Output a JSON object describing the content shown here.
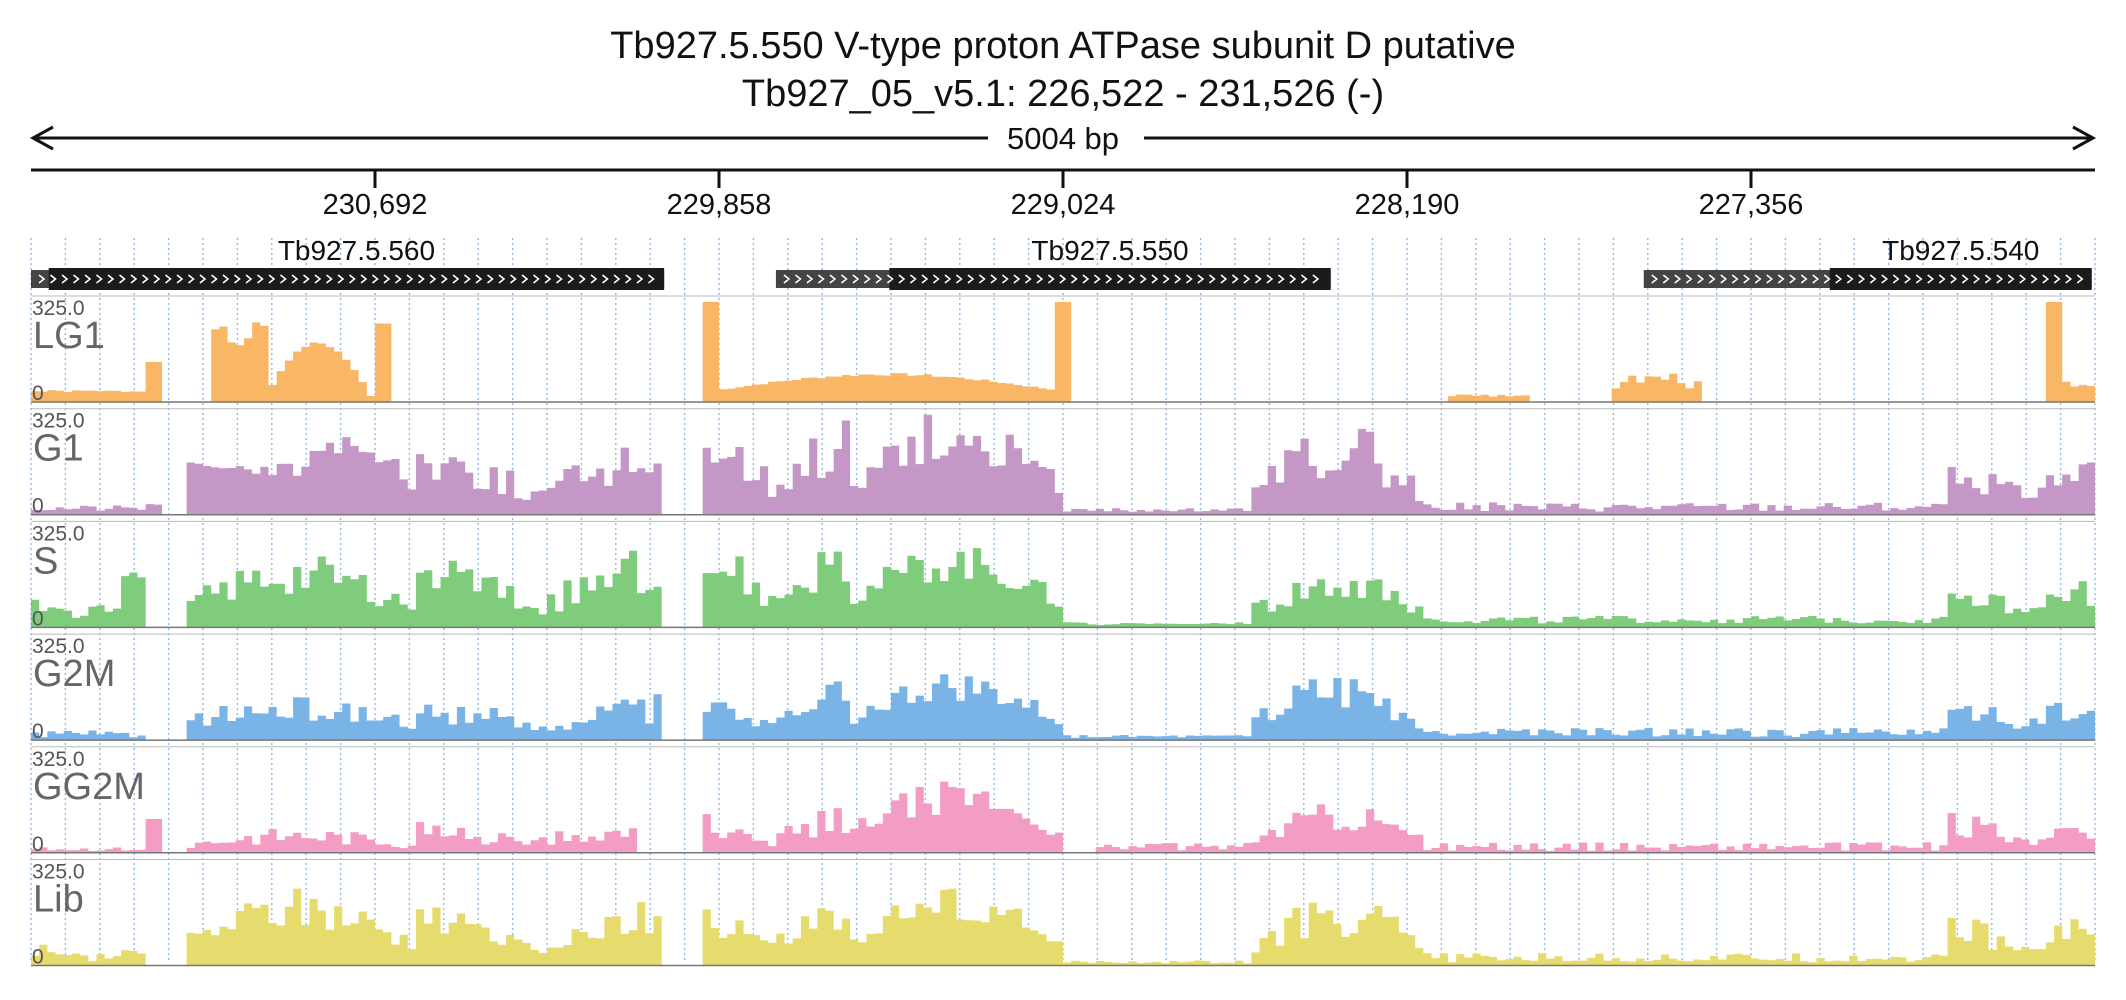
{
  "title": {
    "line1": "Tb927.5.550  V-type proton ATPase subunit D  putative",
    "line2": "Tb927_05_v5.1: 226,522 - 231,526 (-)"
  },
  "span_label": "5004 bp",
  "colors": {
    "axis": "#111111",
    "gridline": "#8fb8e3",
    "gene_cds": "#1b1b1b",
    "gene_utr": "#444444",
    "track_border": "#bbbbbb",
    "track_baseline": "#777777"
  },
  "chart_data": {
    "type": "area",
    "region": {
      "chrom": "Tb927_05_v5.1",
      "start": 226522,
      "end": 231526,
      "strand": "-"
    },
    "x_reversed": true,
    "x_ticks": [
      {
        "pos": 230692,
        "label": "230,692"
      },
      {
        "pos": 229858,
        "label": "229,858"
      },
      {
        "pos": 229024,
        "label": "229,024"
      },
      {
        "pos": 228190,
        "label": "228,190"
      },
      {
        "pos": 227356,
        "label": "227,356"
      }
    ],
    "genes": [
      {
        "name": "Tb927.5.560",
        "utr": [
          229991,
          231526
        ],
        "cds": [
          229991,
          231483
        ]
      },
      {
        "name": "Tb927.5.550",
        "utr": [
          228375,
          229720
        ],
        "cds": [
          228375,
          229445
        ]
      },
      {
        "name": "Tb927.5.540",
        "utr": [
          226530,
          227616
        ],
        "cds": [
          226530,
          227165
        ]
      }
    ],
    "ylim": [
      0,
      325
    ],
    "ytick_labels": {
      "max": "325.0",
      "min": "0"
    },
    "num_bins": 252,
    "tracks": [
      {
        "name": "LG1",
        "color": "#f9b665",
        "segments": [
          {
            "from": 231526,
            "to": 231250,
            "base": 35,
            "amp": 0,
            "shape": "flat",
            "noise": 0.1,
            "seed": 1
          },
          {
            "from": 231250,
            "to": 231200,
            "base": 130,
            "amp": 0,
            "shape": "flat",
            "noise": 0.0,
            "seed": 2
          },
          {
            "from": 231090,
            "to": 230960,
            "base": 170,
            "amp": 80,
            "shape": "valley",
            "noise": 0.08,
            "seed": 3
          },
          {
            "from": 230960,
            "to": 230700,
            "base": 15,
            "amp": 180,
            "shape": "dome",
            "noise": 0.05,
            "seed": 4
          },
          {
            "from": 230700,
            "to": 230650,
            "base": 255,
            "amp": 0,
            "shape": "flat",
            "noise": 0.0,
            "seed": 5
          },
          {
            "from": 229900,
            "to": 229855,
            "base": 325,
            "amp": 0,
            "shape": "flat",
            "noise": 0.0,
            "seed": 6
          },
          {
            "from": 229855,
            "to": 229048,
            "base": 40,
            "amp": 50,
            "shape": "dome",
            "noise": 0.05,
            "seed": 7
          },
          {
            "from": 229048,
            "to": 229000,
            "base": 325,
            "amp": 0,
            "shape": "flat",
            "noise": 0.0,
            "seed": 8
          },
          {
            "from": 228090,
            "to": 227900,
            "base": 22,
            "amp": 0,
            "shape": "flat",
            "noise": 0.25,
            "seed": 9
          },
          {
            "from": 227700,
            "to": 227480,
            "base": 55,
            "amp": 20,
            "shape": "dome",
            "noise": 0.3,
            "seed": 10
          },
          {
            "from": 226650,
            "to": 226600,
            "base": 325,
            "amp": 0,
            "shape": "flat",
            "noise": 0.0,
            "seed": 11
          },
          {
            "from": 226600,
            "to": 226522,
            "base": 60,
            "amp": 0,
            "shape": "flat",
            "noise": 0.2,
            "seed": 12
          }
        ]
      },
      {
        "name": "G1",
        "color": "#c497c6",
        "segments": [
          {
            "from": 231526,
            "to": 231250,
            "base": 20,
            "amp": 0,
            "shape": "flat",
            "noise": 0.5,
            "seed": 21
          },
          {
            "from": 231250,
            "to": 231200,
            "base": 45,
            "amp": 0,
            "shape": "flat",
            "noise": 0.3,
            "seed": 22
          },
          {
            "from": 231150,
            "to": 230900,
            "base": 150,
            "amp": 0,
            "shape": "valley",
            "noise": 0.15,
            "seed": 23
          },
          {
            "from": 230900,
            "to": 230600,
            "base": 80,
            "amp": 170,
            "shape": "dome",
            "noise": 0.2,
            "seed": 24
          },
          {
            "from": 230600,
            "to": 230000,
            "base": 60,
            "amp": 120,
            "shape": "valley",
            "noise": 0.45,
            "seed": 25
          },
          {
            "from": 229900,
            "to": 229550,
            "base": 90,
            "amp": 140,
            "shape": "valley",
            "noise": 0.45,
            "seed": 26
          },
          {
            "from": 229550,
            "to": 229030,
            "base": 90,
            "amp": 170,
            "shape": "dome",
            "noise": 0.35,
            "seed": 27
          },
          {
            "from": 229030,
            "to": 228560,
            "base": 15,
            "amp": 0,
            "shape": "flat",
            "noise": 0.4,
            "seed": 28
          },
          {
            "from": 228560,
            "to": 228150,
            "base": 60,
            "amp": 160,
            "shape": "dome",
            "noise": 0.45,
            "seed": 29
          },
          {
            "from": 228150,
            "to": 226880,
            "base": 25,
            "amp": 0,
            "shape": "flat",
            "noise": 0.6,
            "seed": 30
          },
          {
            "from": 226880,
            "to": 226522,
            "base": 60,
            "amp": 80,
            "shape": "valley",
            "noise": 0.45,
            "seed": 31
          }
        ]
      },
      {
        "name": "S",
        "color": "#7fcd7c",
        "segments": [
          {
            "from": 231526,
            "to": 231300,
            "base": 40,
            "amp": 30,
            "shape": "valley",
            "noise": 0.3,
            "seed": 41
          },
          {
            "from": 231300,
            "to": 231250,
            "base": 140,
            "amp": 0,
            "shape": "flat",
            "noise": 0.3,
            "seed": 42
          },
          {
            "from": 231150,
            "to": 230600,
            "base": 70,
            "amp": 100,
            "shape": "dome",
            "noise": 0.4,
            "seed": 43
          },
          {
            "from": 230600,
            "to": 230000,
            "base": 60,
            "amp": 120,
            "shape": "valley",
            "noise": 0.45,
            "seed": 44
          },
          {
            "from": 229900,
            "to": 229550,
            "base": 80,
            "amp": 130,
            "shape": "valley",
            "noise": 0.45,
            "seed": 45
          },
          {
            "from": 229550,
            "to": 229030,
            "base": 80,
            "amp": 130,
            "shape": "dome",
            "noise": 0.3,
            "seed": 46
          },
          {
            "from": 229030,
            "to": 228560,
            "base": 12,
            "amp": 0,
            "shape": "flat",
            "noise": 0.4,
            "seed": 47
          },
          {
            "from": 228560,
            "to": 228150,
            "base": 60,
            "amp": 80,
            "shape": "dome",
            "noise": 0.45,
            "seed": 48
          },
          {
            "from": 228150,
            "to": 226880,
            "base": 25,
            "amp": 0,
            "shape": "flat",
            "noise": 0.5,
            "seed": 49
          },
          {
            "from": 226880,
            "to": 226522,
            "base": 50,
            "amp": 60,
            "shape": "valley",
            "noise": 0.4,
            "seed": 50
          }
        ]
      },
      {
        "name": "G2M",
        "color": "#7ab4e6",
        "segments": [
          {
            "from": 231526,
            "to": 231250,
            "base": 20,
            "amp": 0,
            "shape": "flat",
            "noise": 0.6,
            "seed": 61
          },
          {
            "from": 231150,
            "to": 230600,
            "base": 60,
            "amp": 40,
            "shape": "dome",
            "noise": 0.4,
            "seed": 62
          },
          {
            "from": 230600,
            "to": 230000,
            "base": 40,
            "amp": 60,
            "shape": "valley",
            "noise": 0.5,
            "seed": 63
          },
          {
            "from": 229900,
            "to": 229550,
            "base": 60,
            "amp": 70,
            "shape": "valley",
            "noise": 0.5,
            "seed": 64
          },
          {
            "from": 229550,
            "to": 229030,
            "base": 60,
            "amp": 110,
            "shape": "dome",
            "noise": 0.3,
            "seed": 65
          },
          {
            "from": 229030,
            "to": 228560,
            "base": 12,
            "amp": 0,
            "shape": "flat",
            "noise": 0.4,
            "seed": 66
          },
          {
            "from": 228560,
            "to": 228150,
            "base": 60,
            "amp": 110,
            "shape": "dome",
            "noise": 0.45,
            "seed": 67
          },
          {
            "from": 228150,
            "to": 226880,
            "base": 25,
            "amp": 0,
            "shape": "flat",
            "noise": 0.6,
            "seed": 68
          },
          {
            "from": 226880,
            "to": 226522,
            "base": 40,
            "amp": 70,
            "shape": "valley",
            "noise": 0.45,
            "seed": 69
          }
        ]
      },
      {
        "name": "GG2M",
        "color": "#f39cc4",
        "segments": [
          {
            "from": 231526,
            "to": 231250,
            "base": 12,
            "amp": 0,
            "shape": "flat",
            "noise": 0.5,
            "seed": 81
          },
          {
            "from": 231250,
            "to": 231200,
            "base": 110,
            "amp": 0,
            "shape": "flat",
            "noise": 0.0,
            "seed": 82
          },
          {
            "from": 231150,
            "to": 230600,
            "base": 25,
            "amp": 30,
            "shape": "dome",
            "noise": 0.5,
            "seed": 83
          },
          {
            "from": 230600,
            "to": 230050,
            "base": 30,
            "amp": 40,
            "shape": "valley",
            "noise": 0.5,
            "seed": 84
          },
          {
            "from": 229900,
            "to": 229550,
            "base": 40,
            "amp": 60,
            "shape": "valley",
            "noise": 0.5,
            "seed": 85
          },
          {
            "from": 229550,
            "to": 229030,
            "base": 60,
            "amp": 120,
            "shape": "dome",
            "noise": 0.3,
            "seed": 86
          },
          {
            "from": 228950,
            "to": 228560,
            "base": 20,
            "amp": 0,
            "shape": "flat",
            "noise": 0.6,
            "seed": 87
          },
          {
            "from": 228560,
            "to": 228150,
            "base": 40,
            "amp": 80,
            "shape": "dome",
            "noise": 0.4,
            "seed": 88
          },
          {
            "from": 228150,
            "to": 226880,
            "base": 20,
            "amp": 0,
            "shape": "flat",
            "noise": 0.7,
            "seed": 89
          },
          {
            "from": 226880,
            "to": 226522,
            "base": 30,
            "amp": 60,
            "shape": "valley",
            "noise": 0.5,
            "seed": 90
          }
        ]
      },
      {
        "name": "Lib",
        "color": "#e6dc6e",
        "segments": [
          {
            "from": 231526,
            "to": 231250,
            "base": 20,
            "amp": 30,
            "shape": "valley",
            "noise": 0.5,
            "seed": 101
          },
          {
            "from": 231150,
            "to": 230600,
            "base": 70,
            "amp": 110,
            "shape": "dome",
            "noise": 0.4,
            "seed": 102
          },
          {
            "from": 230600,
            "to": 230000,
            "base": 50,
            "amp": 90,
            "shape": "valley",
            "noise": 0.5,
            "seed": 103
          },
          {
            "from": 229900,
            "to": 229550,
            "base": 60,
            "amp": 100,
            "shape": "valley",
            "noise": 0.5,
            "seed": 104
          },
          {
            "from": 229550,
            "to": 229030,
            "base": 70,
            "amp": 130,
            "shape": "dome",
            "noise": 0.3,
            "seed": 105
          },
          {
            "from": 229030,
            "to": 228560,
            "base": 12,
            "amp": 0,
            "shape": "flat",
            "noise": 0.4,
            "seed": 106
          },
          {
            "from": 228560,
            "to": 228150,
            "base": 60,
            "amp": 100,
            "shape": "dome",
            "noise": 0.45,
            "seed": 107
          },
          {
            "from": 228150,
            "to": 226880,
            "base": 25,
            "amp": 0,
            "shape": "flat",
            "noise": 0.6,
            "seed": 108
          },
          {
            "from": 226880,
            "to": 226522,
            "base": 40,
            "amp": 80,
            "shape": "valley",
            "noise": 0.45,
            "seed": 109
          }
        ]
      }
    ]
  }
}
